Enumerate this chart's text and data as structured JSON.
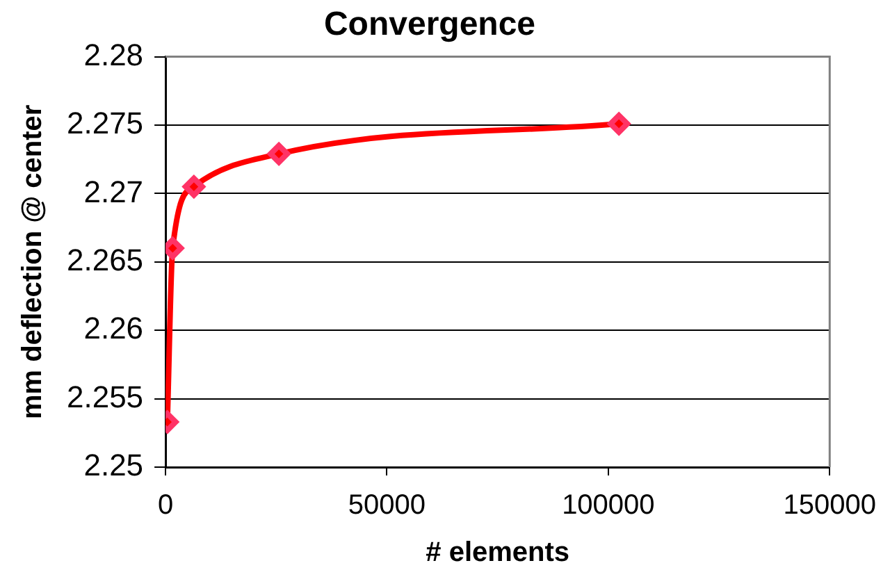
{
  "chart_data": {
    "type": "line",
    "title": "Convergence",
    "xlabel": "# elements",
    "ylabel": "mm deflection @ center",
    "x": [
      400,
      1600,
      6400,
      25600,
      102400
    ],
    "series": [
      {
        "color": "#ff0000",
        "values": [
          2.2533,
          2.266,
          2.2705,
          2.2729,
          2.2751
        ]
      }
    ],
    "xlim": [
      0,
      150000
    ],
    "xticks": [
      0,
      50000,
      100000,
      150000
    ],
    "ylim": [
      2.25,
      2.28
    ],
    "yticks": [
      2.25,
      2.255,
      2.26,
      2.265,
      2.27,
      2.275,
      2.28
    ],
    "grid": "y",
    "marker": "diamond",
    "line_style": "solid"
  }
}
